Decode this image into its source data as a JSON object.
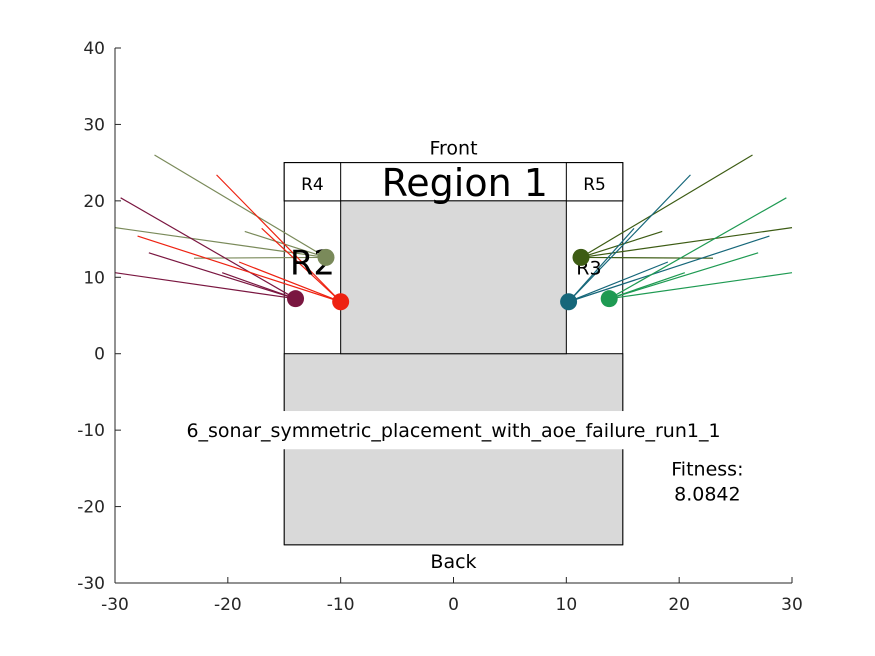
{
  "chart_data": {
    "type": "scatter",
    "xlim": [
      -30,
      30
    ],
    "ylim": [
      -30,
      40
    ],
    "x_ticks": [
      -30,
      -20,
      -10,
      0,
      10,
      20,
      30
    ],
    "y_ticks": [
      -30,
      -20,
      -10,
      0,
      10,
      20,
      30,
      40
    ],
    "grid": false,
    "regions": [
      {
        "name": "outer-body",
        "x": [
          -15,
          15
        ],
        "y": [
          -25,
          25
        ],
        "fill": "#ffffff"
      },
      {
        "name": "front-strip",
        "x": [
          -15,
          15
        ],
        "y": [
          20,
          25
        ],
        "fill": "#ffffff"
      },
      {
        "name": "back-block",
        "x": [
          -15,
          15
        ],
        "y": [
          -25,
          0
        ],
        "fill": "#d9d9d9"
      },
      {
        "name": "center-block",
        "x": [
          -10,
          10
        ],
        "y": [
          0,
          20
        ],
        "fill": "#d9d9d9"
      },
      {
        "name": "region-r4",
        "x": [
          -15,
          -10
        ],
        "y": [
          20,
          25
        ],
        "fill": "#ffffff"
      },
      {
        "name": "region-r5",
        "x": [
          10,
          15
        ],
        "y": [
          20,
          25
        ],
        "fill": "#ffffff"
      }
    ],
    "text_labels": {
      "front": "Front",
      "back": "Back",
      "region1": "Region 1",
      "r2": "R2",
      "r3": "R3",
      "r4": "R4",
      "r5": "R5",
      "run_title": "6_sonar_symmetric_placement_with_aoe_failure_run1_1",
      "fitness_label": "Fitness:",
      "fitness_value": "8.0842"
    },
    "sensors": [
      {
        "x": -11.3,
        "y": 12.6,
        "color": "#7a8a5a",
        "rays": [
          [
            -26.5,
            26
          ],
          [
            -18.5,
            16
          ],
          [
            -30,
            16.5
          ],
          [
            -23,
            12.5
          ]
        ]
      },
      {
        "x": -14.0,
        "y": 7.2,
        "color": "#7a1640",
        "rays": [
          [
            -29.5,
            20.4
          ],
          [
            -30,
            10.6
          ],
          [
            -27,
            13.2
          ],
          [
            -20.5,
            10.6
          ]
        ]
      },
      {
        "x": -10.0,
        "y": 6.8,
        "color": "#ee2211",
        "rays": [
          [
            -21.0,
            23.4
          ],
          [
            -17.0,
            16.4
          ],
          [
            -28.0,
            15.4
          ],
          [
            -19.0,
            12.0
          ]
        ]
      },
      {
        "x": 11.3,
        "y": 12.6,
        "color": "#3d5c14",
        "rays": [
          [
            26.5,
            26
          ],
          [
            18.5,
            16
          ],
          [
            30,
            16.5
          ],
          [
            23,
            12.5
          ]
        ]
      },
      {
        "x": 10.2,
        "y": 6.8,
        "color": "#16677a",
        "rays": [
          [
            21.0,
            23.4
          ],
          [
            16.0,
            16.4
          ],
          [
            28.0,
            15.4
          ],
          [
            19.0,
            12.0
          ]
        ]
      },
      {
        "x": 13.8,
        "y": 7.2,
        "color": "#1e9a52",
        "rays": [
          [
            29.5,
            20.4
          ],
          [
            30,
            10.6
          ],
          [
            27,
            13.2
          ],
          [
            20.5,
            10.6
          ]
        ]
      }
    ]
  }
}
